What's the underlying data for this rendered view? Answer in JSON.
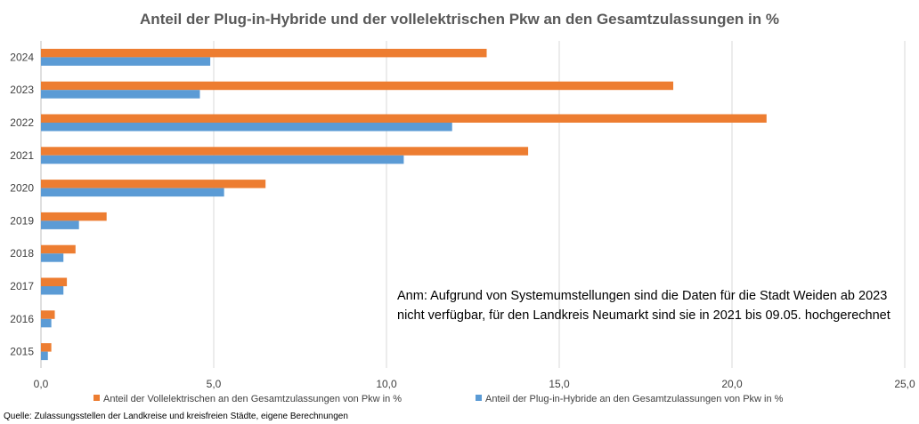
{
  "chart_data": {
    "type": "bar",
    "orientation": "horizontal",
    "title": "Anteil der Plug-in-Hybride und der vollelektrischen Pkw an den Gesamtzulassungen in %",
    "categories": [
      "2015",
      "2016",
      "2017",
      "2018",
      "2019",
      "2020",
      "2021",
      "2022",
      "2023",
      "2024"
    ],
    "series": [
      {
        "name": "Anteil der Vollelektrischen an den Gesamtzulassungen von Pkw in %",
        "color": "#ED7D31",
        "values": [
          0.3,
          0.4,
          0.75,
          1.0,
          1.9,
          6.5,
          14.1,
          21.0,
          18.3,
          12.9
        ]
      },
      {
        "name": "Anteil der Plug-in-Hybride an den Gesamtzulassungen von Pkw in %",
        "color": "#5B9BD5",
        "values": [
          0.2,
          0.3,
          0.65,
          0.65,
          1.1,
          5.3,
          10.5,
          11.9,
          4.6,
          4.9
        ]
      }
    ],
    "xlim": [
      0,
      25
    ],
    "x_ticks": [
      "0,0",
      "5,0",
      "10,0",
      "15,0",
      "20,0",
      "25,0"
    ],
    "x_tick_values": [
      0,
      5,
      10,
      15,
      20,
      25
    ],
    "grid": "vertical",
    "legend_position": "bottom",
    "annotation": [
      "Anm: Aufgrund von Systemumstellungen sind die Daten für die Stadt Weiden ab 2023",
      "nicht verfügbar, für den Landkreis Neumarkt sind sie in 2021 bis 09.05. hochgerechnet"
    ],
    "source": "Quelle: Zulassungsstellen der Landkreise und kreisfreien Städte, eigene Berechnungen"
  }
}
